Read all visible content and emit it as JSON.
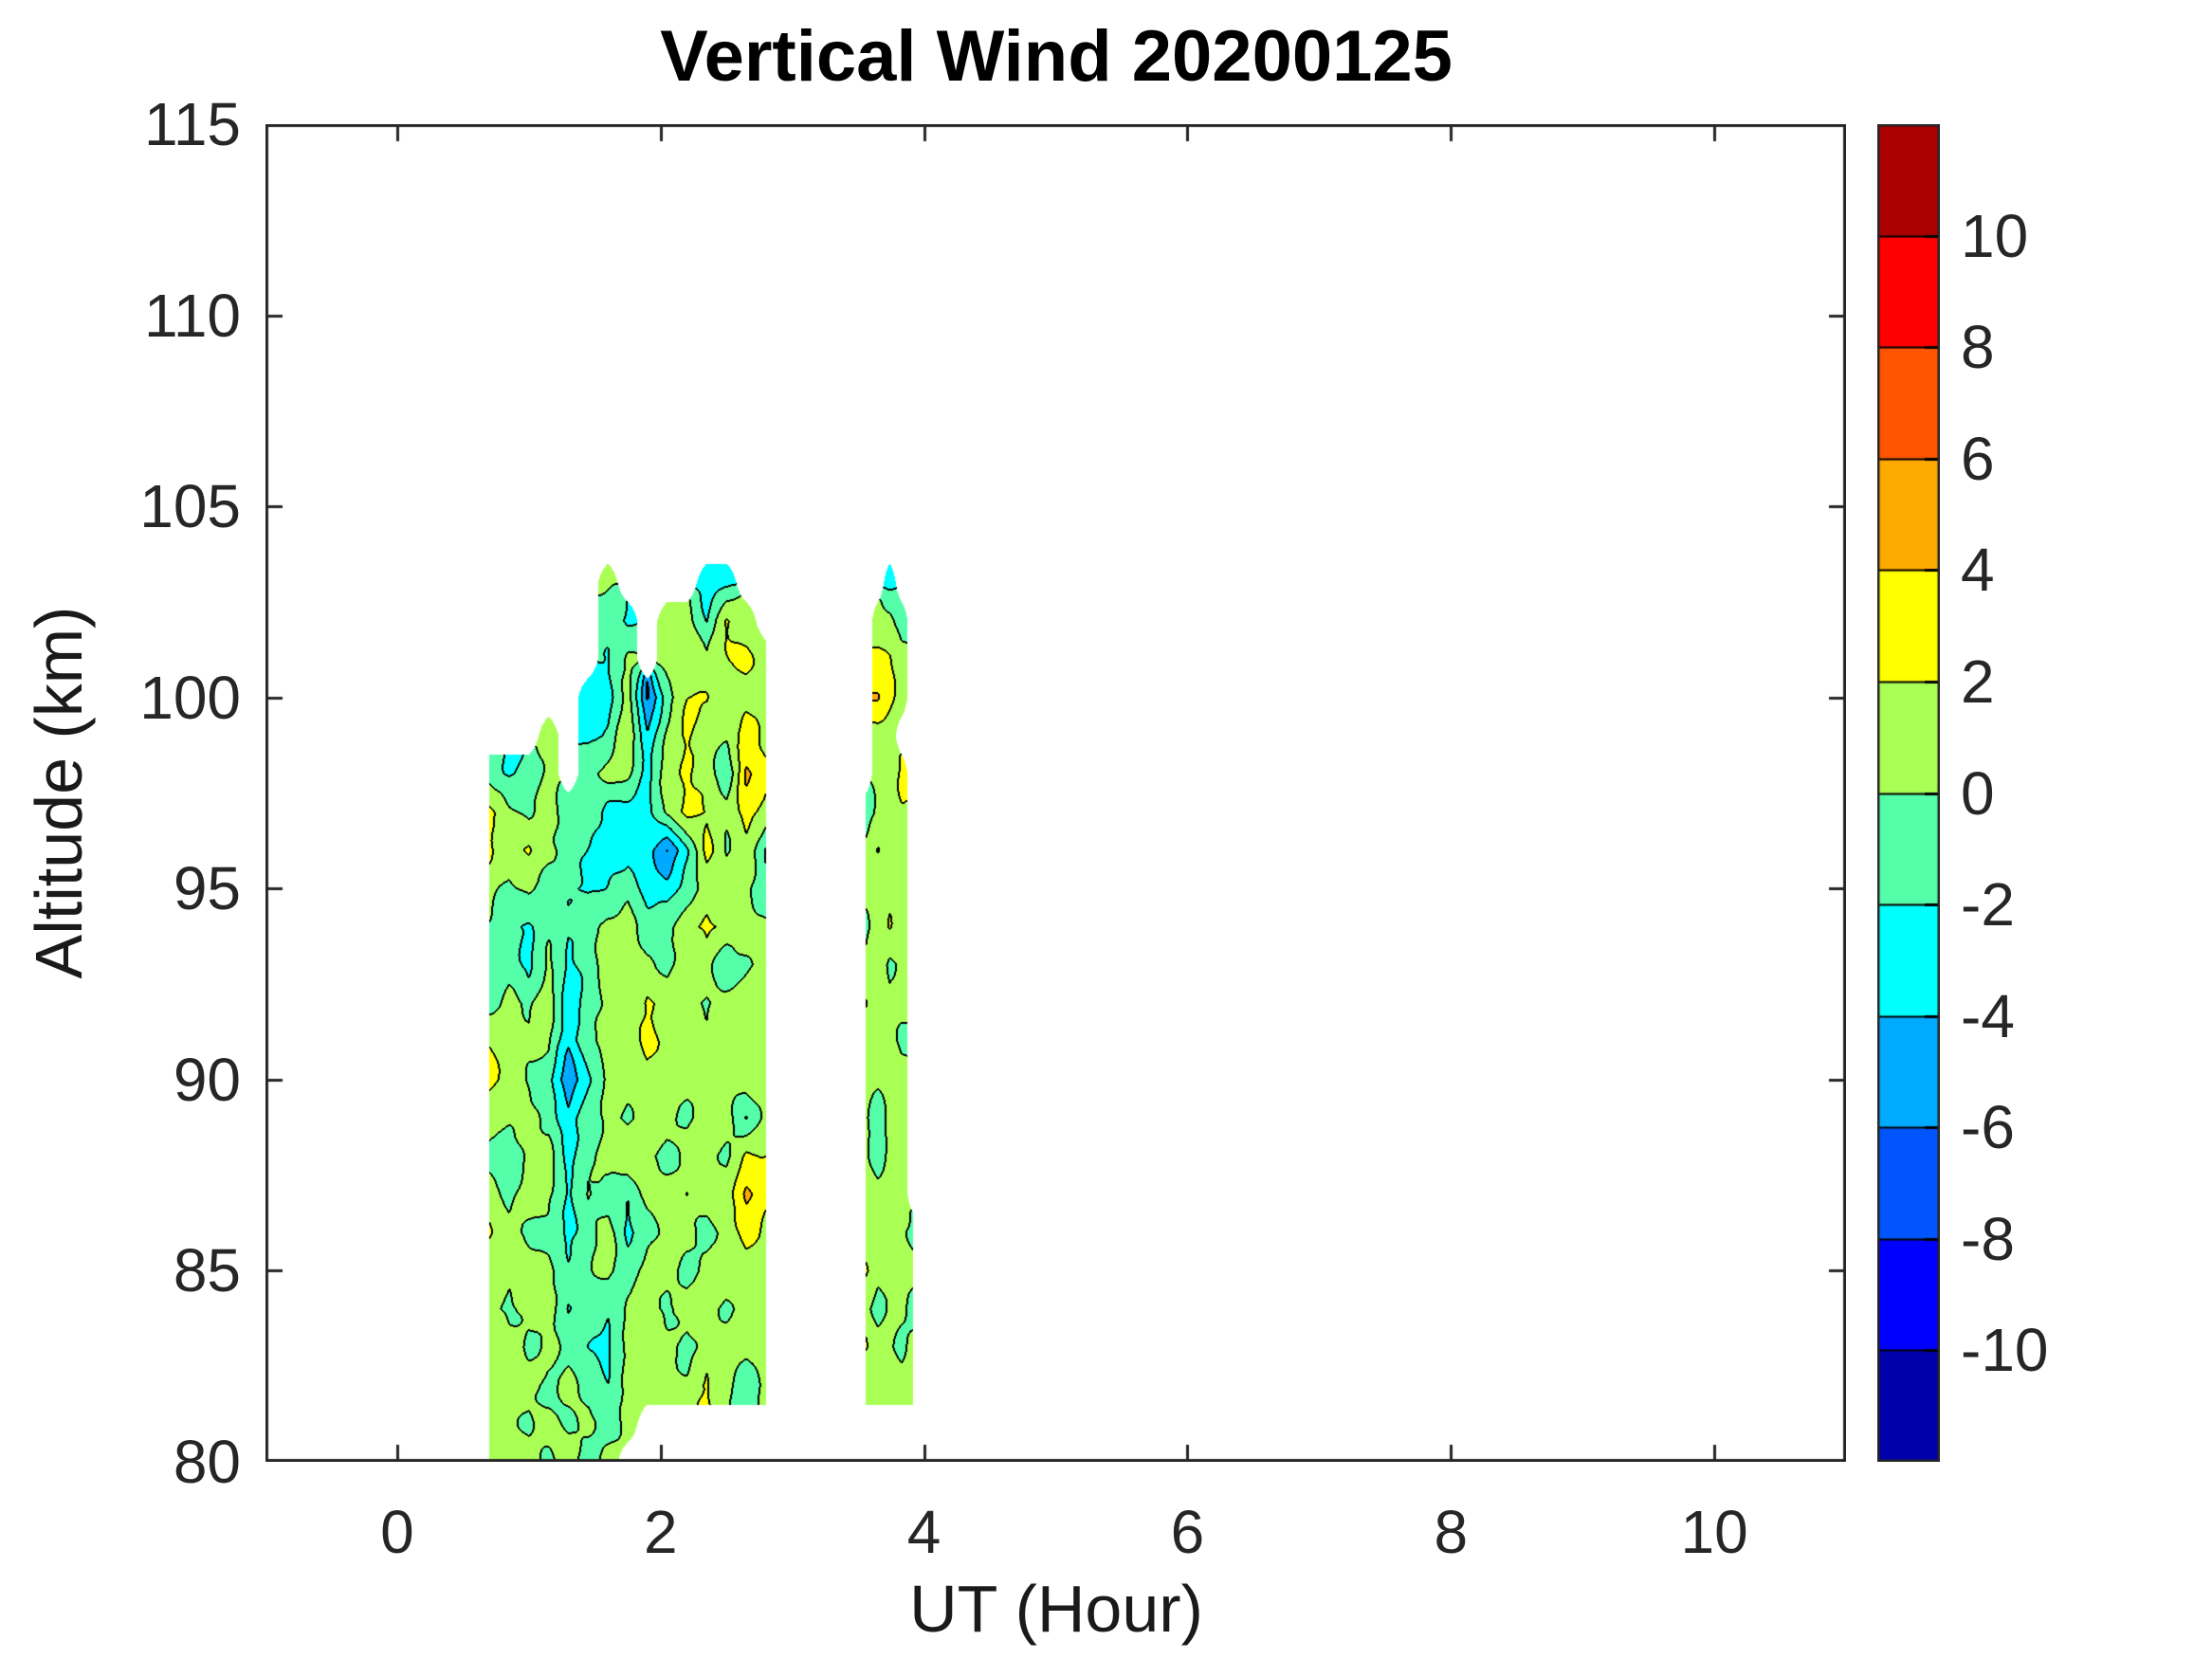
{
  "title": "Vertical Wind 20200125",
  "axes": {
    "xlabel": "UT (Hour)",
    "ylabel": "Altitude (km)",
    "xlim": [
      -1,
      11
    ],
    "ylim": [
      80,
      115
    ],
    "xticks": [
      0,
      2,
      4,
      6,
      8,
      10
    ],
    "yticks": [
      80,
      85,
      90,
      95,
      100,
      105,
      110,
      115
    ],
    "axis_color": "#262626",
    "contour_line_color": "#000000"
  },
  "colorbar": {
    "vmin": -12,
    "vmax": 12,
    "level_step": 2,
    "tick_labels": [
      10,
      8,
      6,
      4,
      2,
      0,
      -2,
      -4,
      -6,
      -8,
      -10
    ],
    "colors_bottom_to_top": [
      "#0000AA",
      "#0000FF",
      "#0055FF",
      "#00AAFF",
      "#00FFFF",
      "#55FFAA",
      "#AAFF55",
      "#FFFF00",
      "#FFAA00",
      "#FF5500",
      "#FF0000",
      "#AA0000"
    ]
  },
  "chart_data": {
    "type": "heatmap",
    "title": "Vertical Wind 20200125",
    "xlabel": "UT (Hour)",
    "ylabel": "Altitude (km)",
    "xlim": [
      -1,
      11
    ],
    "ylim": [
      80,
      115
    ],
    "levels": [
      -12,
      -10,
      -8,
      -6,
      -4,
      -2,
      0,
      2,
      4,
      6,
      8,
      10,
      12
    ],
    "y_km": [
      104,
      103,
      102,
      101,
      100,
      99,
      98,
      97,
      96,
      95,
      94,
      93,
      92,
      91,
      90,
      89,
      88,
      87,
      86,
      85,
      84,
      83,
      82,
      81,
      80
    ],
    "patches": [
      {
        "x_hour": [
          0.7,
          0.85,
          1.0,
          1.15,
          1.3,
          1.45,
          1.6,
          1.75,
          1.9,
          2.05,
          2.2,
          2.35,
          2.5,
          2.65,
          2.8
        ],
        "values": [
          [
            null,
            null,
            null,
            null,
            null,
            null,
            null,
            null,
            null,
            null,
            null,
            null,
            null,
            null,
            null
          ],
          [
            null,
            null,
            null,
            null,
            null,
            null,
            0.5,
            null,
            null,
            null,
            null,
            -2.5,
            -2.6,
            null,
            null
          ],
          [
            null,
            null,
            null,
            null,
            null,
            null,
            -1.0,
            -2.3,
            null,
            0.6,
            0.8,
            -2.2,
            2.6,
            0.9,
            null
          ],
          [
            null,
            null,
            null,
            null,
            null,
            null,
            -2.0,
            0.5,
            null,
            1.2,
            1.5,
            0.3,
            1.9,
            2.5,
            1.0
          ],
          [
            null,
            null,
            null,
            null,
            null,
            -2.4,
            -2.8,
            0.8,
            -6.3,
            -1.0,
            1.8,
            2.3,
            0.8,
            1.2,
            0.9
          ],
          [
            null,
            null,
            null,
            0.5,
            null,
            -2.6,
            -2.0,
            2.3,
            -3.5,
            0.5,
            2.4,
            1.0,
            0.6,
            3.0,
            1.2
          ],
          [
            -0.5,
            -2.2,
            -2.0,
            0.8,
            null,
            -0.8,
            0.9,
            0.8,
            -2.8,
            1.0,
            2.4,
            0.8,
            -2.0,
            4.6,
            2.5
          ],
          [
            2.4,
            0.5,
            -0.5,
            1.0,
            -1.5,
            -0.5,
            -2.6,
            -3.0,
            -2.5,
            0.5,
            2.8,
            2.2,
            0.5,
            2.8,
            1.5
          ],
          [
            2.2,
            0.8,
            2.3,
            0.5,
            -0.8,
            -2.0,
            -3.2,
            -2.8,
            -3.0,
            -6.2,
            -2.4,
            2.6,
            -0.5,
            1.8,
            -2.2
          ],
          [
            0.8,
            -0.5,
            0.6,
            -1.2,
            -1.8,
            -2.4,
            -2.0,
            -0.8,
            -2.6,
            -3.0,
            -1.0,
            0.8,
            1.0,
            0.6,
            -1.8
          ],
          [
            -0.6,
            -1.5,
            -2.2,
            -0.8,
            -1.8,
            -0.6,
            0.8,
            1.0,
            -1.5,
            -0.8,
            1.2,
            2.5,
            1.5,
            0.8,
            0.5
          ],
          [
            -2.0,
            -0.8,
            -2.5,
            0.5,
            -2.6,
            -1.0,
            0.9,
            1.4,
            0.6,
            -0.5,
            0.8,
            1.2,
            -1.5,
            -0.5,
            0.8
          ],
          [
            -0.8,
            0.6,
            -0.6,
            1.2,
            -3.0,
            -1.5,
            0.7,
            1.2,
            2.3,
            0.8,
            0.6,
            -0.5,
            0.9,
            1.1,
            1.4
          ],
          [
            2.3,
            1.0,
            0.5,
            0.6,
            -3.4,
            -0.8,
            1.0,
            0.8,
            2.5,
            1.0,
            0.7,
            0.9,
            1.3,
            0.8,
            1.0
          ],
          [
            2.5,
            0.8,
            -0.5,
            -1.0,
            -6.0,
            -2.2,
            0.6,
            0.9,
            1.2,
            0.6,
            1.0,
            0.8,
            0.7,
            1.2,
            0.9
          ],
          [
            1.0,
            0.5,
            0.8,
            -0.6,
            -3.2,
            -1.0,
            0.8,
            -0.5,
            0.9,
            1.1,
            -0.6,
            0.7,
            1.0,
            -1.8,
            0.6
          ],
          [
            -0.8,
            -1.6,
            0.6,
            0.9,
            -2.8,
            -0.6,
            0.9,
            1.1,
            0.5,
            -0.8,
            1.0,
            0.6,
            -0.5,
            2.4,
            1.8
          ],
          [
            0.6,
            -0.5,
            1.0,
            0.5,
            -2.4,
            0.6,
            -0.8,
            -2.0,
            0.8,
            1.0,
            -0.5,
            0.9,
            1.2,
            4.4,
            2.2
          ],
          [
            2.2,
            0.8,
            -0.6,
            -1.0,
            -2.6,
            -0.8,
            0.7,
            -2.4,
            -0.6,
            0.9,
            1.1,
            -0.7,
            0.8,
            2.6,
            1.5
          ],
          [
            2.0,
            0.6,
            0.9,
            0.5,
            -1.2,
            -0.5,
            0.8,
            -1.2,
            1.0,
            0.7,
            -0.8,
            0.6,
            1.0,
            1.2,
            0.8
          ],
          [
            0.8,
            -0.6,
            0.7,
            1.0,
            -2.2,
            -0.8,
            -2.0,
            0.6,
            0.9,
            -0.5,
            0.8,
            1.1,
            -0.6,
            0.9,
            1.3
          ],
          [
            0.6,
            0.9,
            -0.5,
            0.8,
            -0.6,
            -1.8,
            -2.4,
            0.8,
            1.0,
            0.6,
            -0.9,
            0.7,
            1.0,
            0.5,
            0.8
          ],
          [
            0.9,
            0.5,
            0.8,
            -0.7,
            0.6,
            -0.9,
            -1.8,
            0.7,
            0.5,
            1.0,
            0.8,
            2.2,
            0.6,
            -1.5,
            0.9
          ],
          [
            0.7,
            0.8,
            -0.5,
            0.9,
            -0.6,
            0.8,
            -0.9,
            0.6,
            null,
            null,
            null,
            null,
            null,
            null,
            null
          ],
          [
            0.8,
            0.6,
            0.9,
            -0.5,
            0.7,
            -0.7,
            0.5,
            null,
            null,
            null,
            null,
            null,
            null,
            null,
            null
          ]
        ]
      },
      {
        "x_hour": [
          3.56,
          3.65,
          3.74,
          3.83,
          3.92
        ],
        "values": [
          [
            null,
            null,
            null,
            null,
            null
          ],
          [
            null,
            null,
            -2.4,
            null,
            null
          ],
          [
            null,
            0.5,
            0.8,
            -1.5,
            null
          ],
          [
            null,
            3.2,
            2.2,
            0.6,
            null
          ],
          [
            null,
            4.0,
            2.4,
            0.8,
            null
          ],
          [
            null,
            0.7,
            0.6,
            null,
            null
          ],
          [
            null,
            0.8,
            1.0,
            2.3,
            null
          ],
          [
            -1.8,
            0.6,
            1.1,
            2.0,
            null
          ],
          [
            0.8,
            2.3,
            1.2,
            0.9,
            null
          ],
          [
            0.6,
            0.8,
            1.0,
            0.9,
            null
          ],
          [
            -0.5,
            0.7,
            2.2,
            1.1,
            null
          ],
          [
            0.8,
            1.0,
            -0.6,
            0.7,
            null
          ],
          [
            2.3,
            0.8,
            0.6,
            0.9,
            null
          ],
          [
            0.7,
            1.1,
            0.9,
            -0.7,
            null
          ],
          [
            0.9,
            0.6,
            1.0,
            0.8,
            null
          ],
          [
            0.6,
            -1.9,
            0.8,
            1.0,
            null
          ],
          [
            0.8,
            -1.5,
            0.9,
            0.6,
            null
          ],
          [
            1.0,
            0.7,
            0.6,
            0.9,
            null
          ],
          [
            0.6,
            0.9,
            1.1,
            0.7,
            -0.6
          ],
          [
            2.1,
            0.8,
            0.7,
            1.0,
            0.9
          ],
          [
            0.7,
            -1.4,
            0.9,
            0.8,
            -1.2
          ],
          [
            2.2,
            1.0,
            0.6,
            -0.8,
            0.8
          ],
          [
            0.8,
            0.8,
            1.0,
            0.9,
            0.7
          ],
          [
            null,
            null,
            null,
            null,
            null
          ],
          [
            null,
            null,
            null,
            null,
            null
          ]
        ]
      }
    ]
  }
}
